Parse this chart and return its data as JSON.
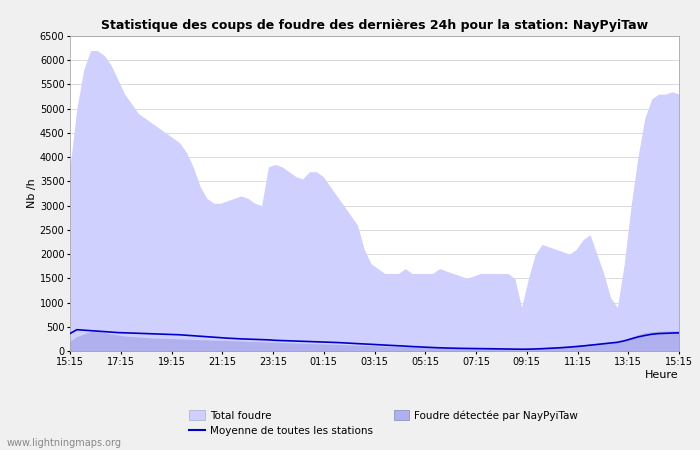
{
  "title": "Statistique des coups de foudre des dernières 24h pour la station: NayPyiTaw",
  "xlabel": "Heure",
  "ylabel": "Nb /h",
  "background_color": "#f0f0f0",
  "plot_bg_color": "#ffffff",
  "ylim": [
    0,
    6500
  ],
  "yticks": [
    0,
    500,
    1000,
    1500,
    2000,
    2500,
    3000,
    3500,
    4000,
    4500,
    5000,
    5500,
    6000,
    6500
  ],
  "xtick_labels": [
    "15:15",
    "17:15",
    "19:15",
    "21:15",
    "23:15",
    "01:15",
    "03:15",
    "05:15",
    "07:15",
    "09:15",
    "11:15",
    "13:15",
    "15:15"
  ],
  "total_foudre_color": "#d0d0ff",
  "total_foudre_edge": "#d0d0ff",
  "station_fill_color": "#b0b0ee",
  "station_edge_color": "#b0b0ee",
  "mean_line_color": "#0000cc",
  "watermark": "www.lightningmaps.org",
  "legend_labels": [
    "Total foudre",
    "Moyenne de toutes les stations",
    "Foudre détectée par NayPyiTaw"
  ],
  "total_foudre": [
    3800,
    5000,
    5800,
    6200,
    6200,
    6100,
    5900,
    5600,
    5300,
    5100,
    4900,
    4800,
    4700,
    4600,
    4500,
    4400,
    4300,
    4100,
    3800,
    3400,
    3150,
    3050,
    3050,
    3100,
    3150,
    3200,
    3150,
    3050,
    3000,
    3800,
    3850,
    3800,
    3700,
    3600,
    3550,
    3700,
    3700,
    3600,
    3400,
    3200,
    3000,
    2800,
    2600,
    2100,
    1800,
    1700,
    1600,
    1600,
    1600,
    1700,
    1600,
    1600,
    1600,
    1600,
    1700,
    1650,
    1600,
    1550,
    1500,
    1550,
    1600,
    1600,
    1600,
    1600,
    1600,
    1500,
    900,
    1500,
    2000,
    2200,
    2150,
    2100,
    2050,
    2000,
    2100,
    2300,
    2400,
    2000,
    1600,
    1100,
    900,
    1800,
    3000,
    4000,
    4800,
    5200,
    5300,
    5300,
    5350,
    5300
  ],
  "station_foudre": [
    200,
    300,
    350,
    400,
    400,
    380,
    350,
    330,
    310,
    300,
    290,
    280,
    270,
    265,
    260,
    255,
    250,
    245,
    240,
    235,
    230,
    225,
    220,
    215,
    210,
    205,
    200,
    195,
    190,
    185,
    180,
    175,
    170,
    165,
    160,
    155,
    150,
    145,
    140,
    135,
    130,
    125,
    120,
    115,
    110,
    105,
    100,
    95,
    90,
    85,
    82,
    80,
    78,
    76,
    74,
    72,
    70,
    68,
    66,
    64,
    62,
    60,
    58,
    56,
    54,
    52,
    50,
    52,
    60,
    70,
    80,
    90,
    100,
    110,
    120,
    130,
    140,
    150,
    160,
    170,
    180,
    220,
    290,
    340,
    380,
    400,
    410,
    415,
    420,
    420
  ],
  "mean_line": [
    360,
    440,
    430,
    420,
    410,
    400,
    390,
    380,
    375,
    370,
    365,
    360,
    355,
    350,
    345,
    340,
    335,
    325,
    315,
    305,
    295,
    285,
    275,
    265,
    258,
    250,
    245,
    240,
    235,
    230,
    220,
    215,
    210,
    205,
    200,
    195,
    190,
    185,
    180,
    175,
    168,
    160,
    152,
    145,
    138,
    130,
    122,
    115,
    108,
    100,
    92,
    85,
    78,
    72,
    66,
    62,
    58,
    55,
    53,
    51,
    49,
    47,
    45,
    43,
    41,
    39,
    37,
    38,
    42,
    48,
    55,
    62,
    70,
    80,
    92,
    105,
    120,
    135,
    150,
    165,
    180,
    210,
    250,
    290,
    320,
    345,
    360,
    365,
    370,
    375
  ]
}
